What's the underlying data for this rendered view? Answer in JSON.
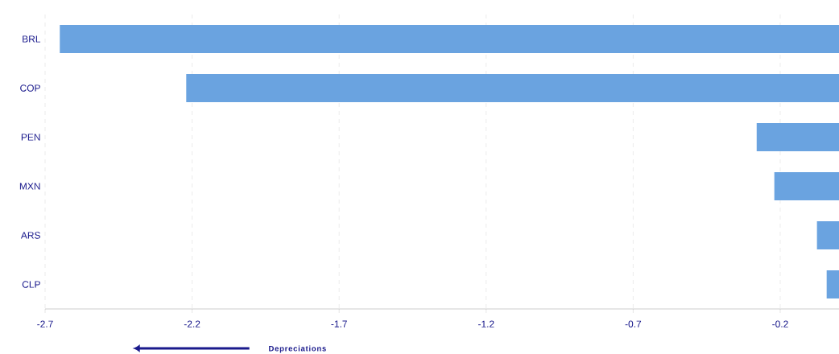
{
  "chart_data": {
    "type": "bar",
    "orientation": "horizontal",
    "categories": [
      "BRL",
      "COP",
      "PEN",
      "MXN",
      "ARS",
      "CLP"
    ],
    "values": [
      -2.65,
      -2.22,
      -0.28,
      -0.22,
      -0.075,
      -0.042
    ],
    "color": "#6aa3e0",
    "xlim": [
      -2.7,
      0
    ],
    "xticks": [
      -2.7,
      -2.2,
      -1.7,
      -1.2,
      -0.7,
      -0.2
    ],
    "grid": "x",
    "annotations": [
      "Depreciations"
    ]
  }
}
